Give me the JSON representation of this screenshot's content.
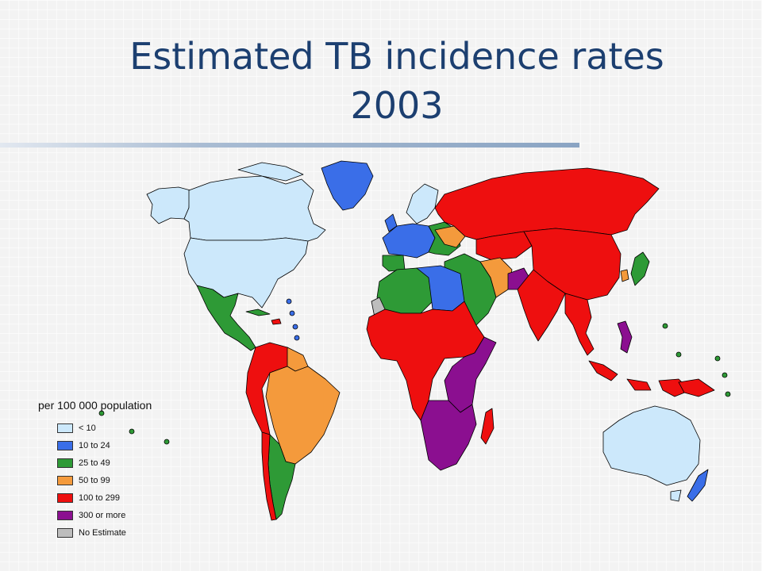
{
  "slide": {
    "title_line1": "Estimated TB incidence rates",
    "title_line2": "2003"
  },
  "legend": {
    "title": "per 100 000 population",
    "items": [
      {
        "label": "< 10",
        "color": "#cce8fb",
        "category": "lt10"
      },
      {
        "label": "10 to 24",
        "color": "#3a6ee8",
        "category": "10-24"
      },
      {
        "label": "25 to 49",
        "color": "#2e9a36",
        "category": "25-49"
      },
      {
        "label": "50 to 99",
        "color": "#f49a3c",
        "category": "50-99"
      },
      {
        "label": "100  to 299",
        "color": "#ee0f0f",
        "category": "100-299"
      },
      {
        "label": "300  or more",
        "color": "#8b0f90",
        "category": "300+"
      },
      {
        "label": "No Estimate",
        "color": "#bdbdbd",
        "category": "none"
      }
    ]
  },
  "map": {
    "regions": [
      {
        "name": "canada",
        "category": "lt10"
      },
      {
        "name": "united-states",
        "category": "lt10"
      },
      {
        "name": "greenland",
        "category": "10-24"
      },
      {
        "name": "alaska",
        "category": "lt10"
      },
      {
        "name": "mexico-central-america",
        "category": "25-49"
      },
      {
        "name": "northern-south-america",
        "category": "100-299"
      },
      {
        "name": "brazil",
        "category": "50-99"
      },
      {
        "name": "argentina-chile",
        "category": "25-49"
      },
      {
        "name": "western-europe",
        "category": "10-24"
      },
      {
        "name": "eastern-europe",
        "category": "25-49"
      },
      {
        "name": "russia",
        "category": "100-299"
      },
      {
        "name": "china",
        "category": "100-299"
      },
      {
        "name": "south-asia",
        "category": "100-299"
      },
      {
        "name": "afghanistan",
        "category": "300+"
      },
      {
        "name": "middle-east",
        "category": "25-49"
      },
      {
        "name": "north-africa",
        "category": "25-49"
      },
      {
        "name": "libya-egypt",
        "category": "10-24"
      },
      {
        "name": "western-sahara",
        "category": "none"
      },
      {
        "name": "central-africa",
        "category": "100-299"
      },
      {
        "name": "east-africa",
        "category": "300+"
      },
      {
        "name": "southern-africa",
        "category": "300+"
      },
      {
        "name": "madagascar",
        "category": "100-299"
      },
      {
        "name": "southeast-asia",
        "category": "100-299"
      },
      {
        "name": "indonesia",
        "category": "100-299"
      },
      {
        "name": "japan",
        "category": "25-49"
      },
      {
        "name": "australia",
        "category": "lt10"
      },
      {
        "name": "new-zealand",
        "category": "10-24"
      },
      {
        "name": "papua-new-guinea",
        "category": "100-299"
      },
      {
        "name": "philippines",
        "category": "300+"
      }
    ]
  }
}
